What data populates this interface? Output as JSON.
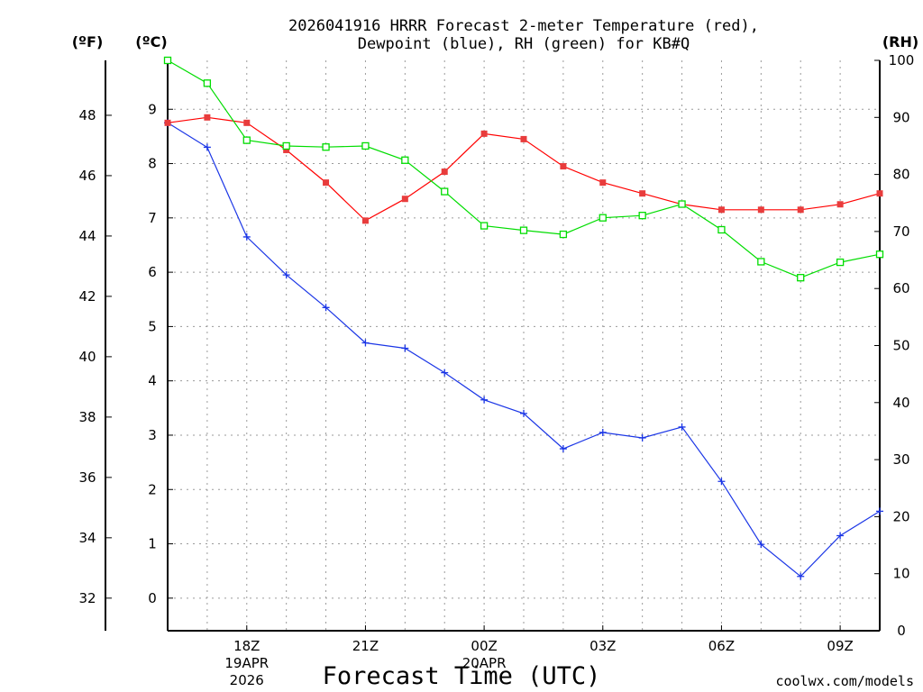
{
  "colors": {
    "temperature": "#ff0000",
    "temperature_fill": "#e83c3c",
    "dewpoint": "#1b36e6",
    "rh": "#00dd00",
    "grid": "#9a9a9a",
    "credit": "#e8423c"
  },
  "chart_data": {
    "type": "line",
    "title_line1": "2026041916 HRRR Forecast 2-meter Temperature (red),",
    "title_line2": "Dewpoint (blue), RH (green) for KB#Q",
    "xlabel": "Forecast Time (UTC)",
    "credit": "coolwx.com/models",
    "units": {
      "fahrenheit": "(ºF)",
      "celsius": "(ºC)",
      "rh": "(RH)"
    },
    "x_hours": [
      16,
      17,
      18,
      19,
      20,
      21,
      22,
      23,
      24,
      25,
      26,
      27,
      28,
      29,
      30,
      31,
      32,
      33,
      34
    ],
    "x_range": [
      16,
      34
    ],
    "x_ticks": [
      {
        "hour": 18,
        "label": "18Z",
        "date": "19APR",
        "year": "2026"
      },
      {
        "hour": 21,
        "label": "21Z"
      },
      {
        "hour": 24,
        "label": "00Z",
        "date": "20APR"
      },
      {
        "hour": 27,
        "label": "03Z"
      },
      {
        "hour": 30,
        "label": "06Z"
      },
      {
        "hour": 33,
        "label": "09Z"
      }
    ],
    "celsius_range": [
      -0.6,
      9.9
    ],
    "celsius_ticks": [
      "0",
      "1",
      "2",
      "3",
      "4",
      "5",
      "6",
      "7",
      "8",
      "9"
    ],
    "fahrenheit_ticks": [
      "32",
      "34",
      "36",
      "38",
      "40",
      "42",
      "44",
      "46",
      "48"
    ],
    "rh_range": [
      0,
      100
    ],
    "rh_ticks": [
      "0",
      "10",
      "20",
      "30",
      "40",
      "50",
      "60",
      "70",
      "80",
      "90",
      "100"
    ],
    "series": [
      {
        "name": "Temperature",
        "unit": "C",
        "marker": "filled-square",
        "values": [
          8.75,
          8.85,
          8.75,
          8.25,
          7.65,
          6.95,
          7.35,
          7.85,
          8.55,
          8.45,
          7.95,
          7.65,
          7.45,
          7.25,
          7.15,
          7.15,
          7.15,
          7.25,
          7.45
        ]
      },
      {
        "name": "Dewpoint",
        "unit": "C",
        "marker": "plus",
        "values": [
          8.75,
          8.3,
          6.65,
          5.95,
          5.35,
          4.7,
          4.6,
          4.15,
          3.65,
          3.4,
          2.75,
          3.05,
          2.95,
          3.15,
          2.15,
          0.99,
          0.4,
          1.15,
          1.6
        ]
      },
      {
        "name": "RH",
        "unit": "%",
        "marker": "open-square",
        "values": [
          100,
          96,
          86,
          85,
          84.8,
          85,
          82.5,
          77,
          71,
          70.2,
          69.5,
          72.4,
          72.8,
          74.8,
          70.3,
          64.7,
          61.9,
          64.6,
          66
        ]
      }
    ]
  }
}
